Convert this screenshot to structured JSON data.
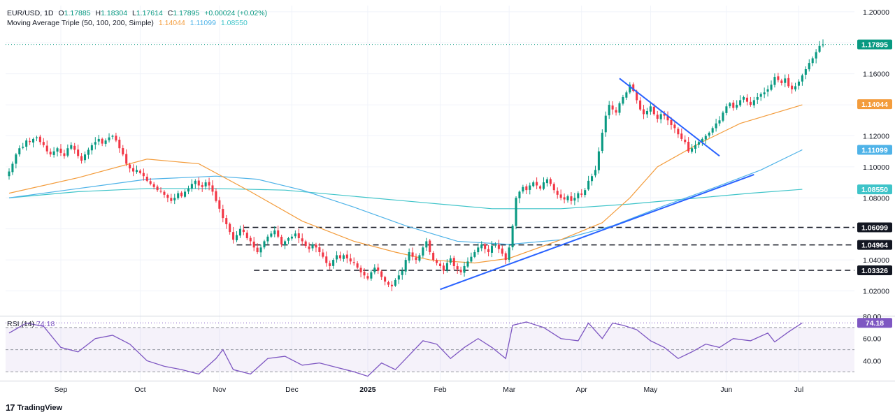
{
  "header": {
    "symbol": "EUR/USD, 1D",
    "o_label": "O",
    "o_value": "1.17885",
    "h_label": "H",
    "h_value": "1.18304",
    "l_label": "L",
    "l_value": "1.17614",
    "c_label": "C",
    "c_value": "1.17895",
    "change": "+0.00024 (+0.02%)",
    "ma_label": "Moving Average Triple (50, 100, 200, Simple)",
    "ma50_value": "1.14044",
    "ma100_value": "1.11099",
    "ma200_value": "1.08550"
  },
  "rsi_panel": {
    "label": "RSI (14)",
    "value": "74.18"
  },
  "footer": {
    "logo": "17",
    "brand": "TradingView"
  },
  "colors": {
    "up": "#089981",
    "down": "#f23645",
    "ma50": "#f39c3c",
    "ma100": "#4fb3e8",
    "ma200": "#3fc4c9",
    "trendline": "#2962ff",
    "rsi": "#7e57c2",
    "grid": "#f0f3fa"
  },
  "chart_data": {
    "type": "candlestick",
    "price_axis": {
      "range": [
        1.004,
        1.204
      ],
      "ticks": [
        "1.20000",
        "1.18000",
        "1.16000",
        "1.14000",
        "1.12000",
        "1.10000",
        "1.08000",
        "1.06000",
        "1.04000",
        "1.02000"
      ],
      "tick_values": [
        1.2,
        1.18,
        1.16,
        1.14,
        1.12,
        1.1,
        1.08,
        1.06,
        1.04,
        1.02
      ]
    },
    "time_axis": {
      "labels": [
        "Sep",
        "Oct",
        "Nov",
        "Dec",
        "2025",
        "Feb",
        "Mar",
        "Apr",
        "May",
        "Jun",
        "Jul"
      ],
      "label_bar_index": [
        15,
        38,
        61,
        82,
        104,
        125,
        145,
        166,
        186,
        208,
        229
      ]
    },
    "price_tags": [
      {
        "label": "1.17895",
        "value": 1.17895,
        "color": "#089981"
      },
      {
        "label": "1.14044",
        "value": 1.14044,
        "color": "#f39c3c"
      },
      {
        "label": "1.11099",
        "value": 1.11099,
        "color": "#4fb3e8"
      },
      {
        "label": "1.08550",
        "value": 1.0855,
        "color": "#3fc4c9"
      },
      {
        "label": "1.06099",
        "value": 1.06099,
        "color": "#131722"
      },
      {
        "label": "1.04964",
        "value": 1.04964,
        "color": "#131722"
      },
      {
        "label": "1.03326",
        "value": 1.03326,
        "color": "#131722"
      }
    ],
    "horizontal_levels": [
      {
        "value": 1.06099,
        "from_bar": 68
      },
      {
        "value": 1.04964,
        "from_bar": 66
      },
      {
        "value": 1.03326,
        "from_bar": 71
      }
    ],
    "trendlines": [
      {
        "name": "down",
        "from": [
          177,
          1.157
        ],
        "to": [
          206,
          1.107
        ]
      },
      {
        "name": "up",
        "from": [
          125,
          1.021
        ],
        "to": [
          216,
          1.095
        ]
      }
    ],
    "closes": [
      1.097,
      1.102,
      1.108,
      1.112,
      1.113,
      1.117,
      1.116,
      1.118,
      1.119,
      1.116,
      1.114,
      1.11,
      1.108,
      1.11,
      1.112,
      1.109,
      1.107,
      1.112,
      1.114,
      1.111,
      1.107,
      1.104,
      1.108,
      1.111,
      1.114,
      1.116,
      1.118,
      1.115,
      1.117,
      1.119,
      1.12,
      1.117,
      1.112,
      1.108,
      1.102,
      1.099,
      1.097,
      1.098,
      1.096,
      1.094,
      1.091,
      1.089,
      1.087,
      1.085,
      1.084,
      1.082,
      1.08,
      1.078,
      1.08,
      1.083,
      1.081,
      1.084,
      1.086,
      1.089,
      1.091,
      1.088,
      1.087,
      1.09,
      1.088,
      1.084,
      1.078,
      1.073,
      1.067,
      1.063,
      1.058,
      1.053,
      1.056,
      1.06,
      1.058,
      1.054,
      1.052,
      1.048,
      1.045,
      1.048,
      1.052,
      1.055,
      1.057,
      1.059,
      1.055,
      1.05,
      1.052,
      1.054,
      1.055,
      1.057,
      1.054,
      1.052,
      1.049,
      1.047,
      1.05,
      1.048,
      1.045,
      1.042,
      1.038,
      1.036,
      1.04,
      1.043,
      1.041,
      1.043,
      1.041,
      1.039,
      1.038,
      1.035,
      1.032,
      1.03,
      1.028,
      1.032,
      1.035,
      1.033,
      1.029,
      1.026,
      1.024,
      1.023,
      1.027,
      1.03,
      1.033,
      1.04,
      1.045,
      1.042,
      1.04,
      1.043,
      1.048,
      1.052,
      1.045,
      1.04,
      1.038,
      1.036,
      1.033,
      1.038,
      1.041,
      1.036,
      1.034,
      1.032,
      1.036,
      1.039,
      1.042,
      1.045,
      1.048,
      1.05,
      1.047,
      1.045,
      1.049,
      1.05,
      1.047,
      1.044,
      1.04,
      1.048,
      1.062,
      1.08,
      1.084,
      1.087,
      1.085,
      1.088,
      1.09,
      1.088,
      1.086,
      1.09,
      1.092,
      1.089,
      1.085,
      1.082,
      1.08,
      1.079,
      1.081,
      1.078,
      1.08,
      1.083,
      1.082,
      1.085,
      1.091,
      1.094,
      1.098,
      1.11,
      1.122,
      1.133,
      1.14,
      1.137,
      1.135,
      1.141,
      1.145,
      1.148,
      1.153,
      1.149,
      1.143,
      1.137,
      1.134,
      1.136,
      1.139,
      1.134,
      1.131,
      1.134,
      1.133,
      1.13,
      1.127,
      1.125,
      1.121,
      1.118,
      1.116,
      1.11,
      1.112,
      1.114,
      1.116,
      1.118,
      1.12,
      1.122,
      1.125,
      1.128,
      1.13,
      1.135,
      1.139,
      1.141,
      1.138,
      1.14,
      1.143,
      1.145,
      1.142,
      1.14,
      1.143,
      1.145,
      1.147,
      1.148,
      1.15,
      1.153,
      1.158,
      1.156,
      1.154,
      1.157,
      1.152,
      1.15,
      1.152,
      1.155,
      1.159,
      1.163,
      1.167,
      1.17,
      1.174,
      1.178,
      1.17895
    ],
    "ma50": [
      [
        0,
        1.083
      ],
      [
        20,
        1.093
      ],
      [
        40,
        1.105
      ],
      [
        55,
        1.102
      ],
      [
        70,
        1.084
      ],
      [
        85,
        1.065
      ],
      [
        100,
        1.052
      ],
      [
        112,
        1.045
      ],
      [
        122,
        1.04
      ],
      [
        135,
        1.038
      ],
      [
        145,
        1.041
      ],
      [
        160,
        1.053
      ],
      [
        172,
        1.064
      ],
      [
        180,
        1.08
      ],
      [
        188,
        1.1
      ],
      [
        200,
        1.115
      ],
      [
        212,
        1.128
      ],
      [
        230,
        1.14
      ]
    ],
    "ma100": [
      [
        0,
        1.08
      ],
      [
        20,
        1.086
      ],
      [
        40,
        1.092
      ],
      [
        60,
        1.094
      ],
      [
        72,
        1.092
      ],
      [
        85,
        1.085
      ],
      [
        100,
        1.074
      ],
      [
        115,
        1.062
      ],
      [
        130,
        1.052
      ],
      [
        145,
        1.05
      ],
      [
        160,
        1.053
      ],
      [
        175,
        1.062
      ],
      [
        190,
        1.075
      ],
      [
        205,
        1.087
      ],
      [
        218,
        1.098
      ],
      [
        230,
        1.111
      ]
    ],
    "ma200": [
      [
        0,
        1.08
      ],
      [
        20,
        1.084
      ],
      [
        40,
        1.086
      ],
      [
        60,
        1.086
      ],
      [
        80,
        1.085
      ],
      [
        100,
        1.081
      ],
      [
        120,
        1.077
      ],
      [
        140,
        1.073
      ],
      [
        160,
        1.073
      ],
      [
        180,
        1.076
      ],
      [
        200,
        1.08
      ],
      [
        215,
        1.083
      ],
      [
        230,
        1.0855
      ]
    ],
    "rsi": {
      "range": [
        22,
        80
      ],
      "ticks": [
        "80.00",
        "60.00",
        "40.00"
      ],
      "tick_values": [
        80,
        60,
        40
      ],
      "bands": [
        70,
        50,
        30
      ],
      "values": [
        [
          0,
          65
        ],
        [
          5,
          74
        ],
        [
          10,
          71
        ],
        [
          15,
          52
        ],
        [
          20,
          48
        ],
        [
          25,
          60
        ],
        [
          30,
          63
        ],
        [
          35,
          55
        ],
        [
          40,
          40
        ],
        [
          45,
          35
        ],
        [
          50,
          32
        ],
        [
          55,
          28
        ],
        [
          60,
          42
        ],
        [
          62,
          50
        ],
        [
          65,
          32
        ],
        [
          70,
          28
        ],
        [
          75,
          42
        ],
        [
          80,
          44
        ],
        [
          85,
          36
        ],
        [
          90,
          38
        ],
        [
          95,
          34
        ],
        [
          100,
          30
        ],
        [
          104,
          26
        ],
        [
          108,
          38
        ],
        [
          112,
          32
        ],
        [
          116,
          45
        ],
        [
          120,
          58
        ],
        [
          124,
          55
        ],
        [
          128,
          42
        ],
        [
          132,
          52
        ],
        [
          136,
          60
        ],
        [
          140,
          52
        ],
        [
          144,
          42
        ],
        [
          146,
          72
        ],
        [
          150,
          75
        ],
        [
          155,
          70
        ],
        [
          160,
          60
        ],
        [
          165,
          58
        ],
        [
          168,
          74
        ],
        [
          172,
          60
        ],
        [
          175,
          74
        ],
        [
          178,
          72
        ],
        [
          182,
          68
        ],
        [
          186,
          58
        ],
        [
          190,
          52
        ],
        [
          194,
          42
        ],
        [
          198,
          48
        ],
        [
          202,
          55
        ],
        [
          206,
          52
        ],
        [
          210,
          60
        ],
        [
          215,
          58
        ],
        [
          220,
          65
        ],
        [
          222,
          57
        ],
        [
          226,
          66
        ],
        [
          230,
          74.18
        ]
      ]
    }
  }
}
